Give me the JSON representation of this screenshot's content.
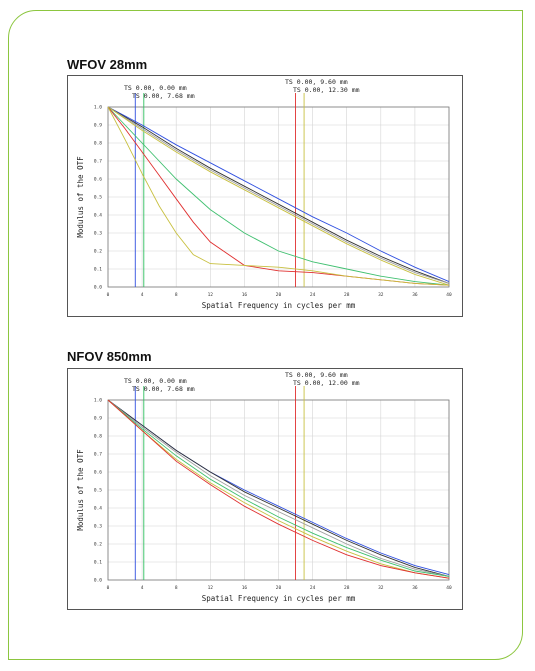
{
  "charts": [
    {
      "title": "WFOV 28mm",
      "chart_data": {
        "type": "line",
        "xlabel": "Spatial Frequency in cycles per mm",
        "ylabel": "Modulus of the OTF",
        "xlim": [
          0,
          40
        ],
        "ylim": [
          0,
          1.0
        ],
        "xticks": [
          "0",
          "4",
          "8",
          "12",
          "16",
          "20",
          "24",
          "28",
          "32",
          "36",
          "40"
        ],
        "yticks": [
          "0.0",
          "0.1",
          "0.2",
          "0.3",
          "0.4",
          "0.5",
          "0.6",
          "0.7",
          "0.8",
          "0.9",
          "1.0"
        ],
        "grid": true,
        "legend": [
          {
            "text": "TS 0.00, 0.00 mm",
            "color": "#3050e0",
            "marker_x": 3.2
          },
          {
            "text": "TS 0.00, 7.68 mm",
            "color": "#30c060",
            "marker_x": 4.2
          },
          {
            "text": "TS 0.00, 9.60 mm",
            "color": "#e03030",
            "marker_x": 22.0
          },
          {
            "text": "TS 0.00, 12.30 mm",
            "color": "#c8c040",
            "marker_x": 23.0
          }
        ],
        "series": [
          {
            "color": "#3050e0",
            "x": [
              0,
              4,
              8,
              12,
              16,
              20,
              24,
              28,
              32,
              36,
              40
            ],
            "y": [
              1.0,
              0.9,
              0.79,
              0.69,
              0.59,
              0.49,
              0.39,
              0.3,
              0.2,
              0.11,
              0.03
            ]
          },
          {
            "color": "#333333",
            "x": [
              0,
              4,
              8,
              12,
              16,
              20,
              24,
              28,
              32,
              36,
              40
            ],
            "y": [
              1.0,
              0.89,
              0.77,
              0.66,
              0.56,
              0.46,
              0.36,
              0.26,
              0.17,
              0.09,
              0.02
            ]
          },
          {
            "color": "#a0a0a0",
            "x": [
              0,
              4,
              8,
              12,
              16,
              20,
              24,
              28,
              32,
              36,
              40
            ],
            "y": [
              1.0,
              0.88,
              0.76,
              0.65,
              0.55,
              0.45,
              0.35,
              0.25,
              0.16,
              0.08,
              0.02
            ]
          },
          {
            "color": "#c8c040",
            "x": [
              0,
              4,
              8,
              12,
              16,
              20,
              24,
              28,
              32,
              36,
              40
            ],
            "y": [
              1.0,
              0.87,
              0.75,
              0.64,
              0.54,
              0.44,
              0.34,
              0.24,
              0.15,
              0.07,
              0.01
            ]
          },
          {
            "color": "#40c070",
            "x": [
              0,
              2,
              4,
              8,
              12,
              16,
              20,
              24,
              28,
              32,
              36,
              40
            ],
            "y": [
              1.0,
              0.9,
              0.8,
              0.6,
              0.43,
              0.3,
              0.2,
              0.14,
              0.1,
              0.06,
              0.03,
              0.01
            ]
          },
          {
            "color": "#e03030",
            "x": [
              0,
              2,
              4,
              6,
              8,
              10,
              12,
              16,
              20,
              24,
              28,
              32,
              36,
              40
            ],
            "y": [
              1.0,
              0.88,
              0.75,
              0.62,
              0.49,
              0.36,
              0.25,
              0.12,
              0.09,
              0.08,
              0.06,
              0.04,
              0.02,
              0.01
            ]
          },
          {
            "color": "#c8c040",
            "x": [
              0,
              2,
              4,
              6,
              8,
              10,
              12,
              16,
              20,
              24,
              28,
              32,
              36,
              40
            ],
            "y": [
              1.0,
              0.82,
              0.63,
              0.45,
              0.3,
              0.18,
              0.13,
              0.12,
              0.11,
              0.09,
              0.06,
              0.04,
              0.02,
              0.01
            ]
          }
        ]
      }
    },
    {
      "title": "NFOV 850mm",
      "chart_data": {
        "type": "line",
        "xlabel": "Spatial Frequency in cycles per mm",
        "ylabel": "Modulus of the OTF",
        "xlim": [
          0,
          40
        ],
        "ylim": [
          0,
          1.0
        ],
        "xticks": [
          "0",
          "4",
          "8",
          "12",
          "16",
          "20",
          "24",
          "28",
          "32",
          "36",
          "40"
        ],
        "yticks": [
          "0.0",
          "0.1",
          "0.2",
          "0.3",
          "0.4",
          "0.5",
          "0.6",
          "0.7",
          "0.8",
          "0.9",
          "1.0"
        ],
        "grid": true,
        "legend": [
          {
            "text": "TS 0.00, 0.00 mm",
            "color": "#3050e0",
            "marker_x": 3.2
          },
          {
            "text": "TS 0.00, 7.68 mm",
            "color": "#30c060",
            "marker_x": 4.2
          },
          {
            "text": "TS 0.00, 9.60 mm",
            "color": "#e03030",
            "marker_x": 22.0
          },
          {
            "text": "TS 0.00, 12.00 mm",
            "color": "#c8c040",
            "marker_x": 23.0
          }
        ],
        "series": [
          {
            "color": "#3050e0",
            "x": [
              0,
              4,
              8,
              12,
              16,
              20,
              24,
              28,
              32,
              36,
              40
            ],
            "y": [
              1.0,
              0.86,
              0.72,
              0.6,
              0.5,
              0.41,
              0.32,
              0.23,
              0.15,
              0.08,
              0.03
            ]
          },
          {
            "color": "#333333",
            "x": [
              0,
              4,
              8,
              12,
              16,
              20,
              24,
              28,
              32,
              36,
              40
            ],
            "y": [
              1.0,
              0.86,
              0.72,
              0.6,
              0.49,
              0.4,
              0.31,
              0.22,
              0.14,
              0.07,
              0.02
            ]
          },
          {
            "color": "#a0a0a0",
            "x": [
              0,
              4,
              8,
              12,
              16,
              20,
              24,
              28,
              32,
              36,
              40
            ],
            "y": [
              1.0,
              0.85,
              0.71,
              0.58,
              0.47,
              0.38,
              0.29,
              0.2,
              0.12,
              0.06,
              0.02
            ]
          },
          {
            "color": "#40c070",
            "x": [
              0,
              4,
              8,
              12,
              16,
              20,
              24,
              28,
              32,
              36,
              40
            ],
            "y": [
              1.0,
              0.84,
              0.69,
              0.56,
              0.45,
              0.35,
              0.26,
              0.18,
              0.11,
              0.05,
              0.02
            ]
          },
          {
            "color": "#c8c040",
            "x": [
              0,
              4,
              8,
              12,
              16,
              20,
              24,
              28,
              32,
              36,
              40
            ],
            "y": [
              1.0,
              0.83,
              0.67,
              0.54,
              0.43,
              0.33,
              0.24,
              0.16,
              0.09,
              0.04,
              0.01
            ]
          },
          {
            "color": "#e03030",
            "x": [
              0,
              4,
              8,
              12,
              16,
              20,
              24,
              28,
              32,
              36,
              40
            ],
            "y": [
              1.0,
              0.83,
              0.66,
              0.53,
              0.41,
              0.31,
              0.22,
              0.14,
              0.08,
              0.04,
              0.01
            ]
          }
        ]
      }
    }
  ]
}
